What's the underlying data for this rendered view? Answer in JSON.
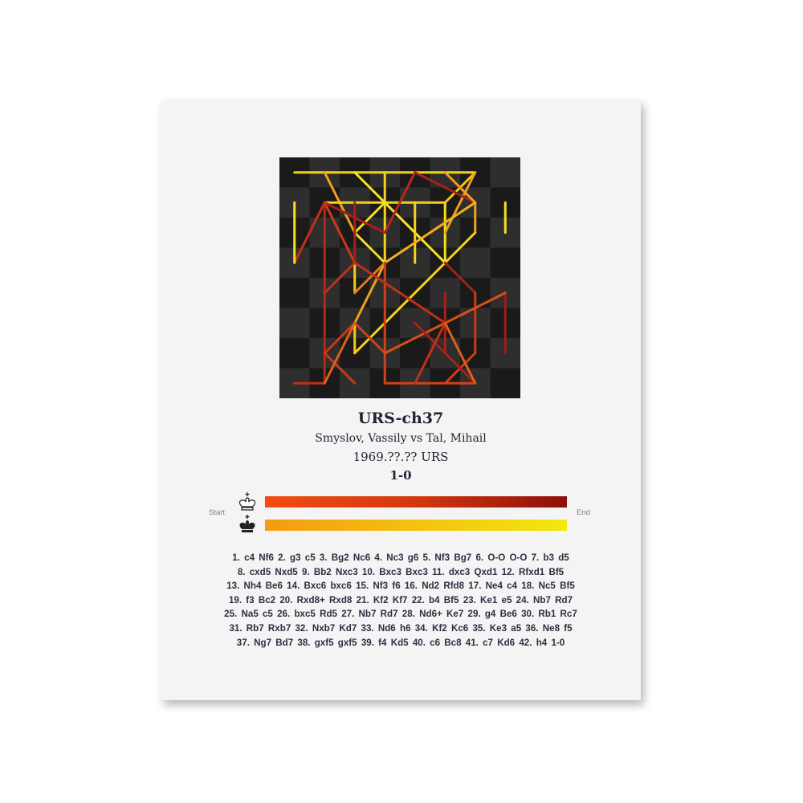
{
  "poster": {
    "event": "URS-ch37",
    "players": "Smyslov,  Vassily vs Tal, Mihail",
    "date_site": "1969.??.?? URS",
    "result": "1-0"
  },
  "legend": {
    "start_label": "Start",
    "end_label": "End",
    "white_icon": "white-king-icon",
    "black_icon": "black-king-icon",
    "white_gradient": [
      "#f24d12",
      "#d2380f",
      "#8e0f0a"
    ],
    "black_gradient": [
      "#f59a12",
      "#f3c210",
      "#f2e80f"
    ]
  },
  "board": {
    "light_square": "#2e2e2e",
    "dark_square": "#1a1a1a",
    "segments": [
      [
        "a8",
        "g8",
        "#f5d21a"
      ],
      [
        "c8",
        "f5",
        "#f7e51b"
      ],
      [
        "d8",
        "d5",
        "#f5d21a"
      ],
      [
        "b8",
        "c6",
        "#f5a01a"
      ],
      [
        "b7",
        "f7",
        "#f5d21a"
      ],
      [
        "e7",
        "e5",
        "#f5d21a"
      ],
      [
        "f7",
        "f5",
        "#f5e01a"
      ],
      [
        "f7",
        "g8",
        "#f5c81a"
      ],
      [
        "g8",
        "f6",
        "#f0a020"
      ],
      [
        "e8",
        "d6",
        "#b8281a"
      ],
      [
        "e8",
        "g7",
        "#a8201a"
      ],
      [
        "f8",
        "g7",
        "#f0a020"
      ],
      [
        "g7",
        "g6",
        "#f0a020"
      ],
      [
        "g6",
        "f5",
        "#f5d21a"
      ],
      [
        "c6",
        "d7",
        "#f5e01a"
      ],
      [
        "c6",
        "d5",
        "#f5e01a"
      ],
      [
        "d5",
        "g7",
        "#f0b020"
      ],
      [
        "b7",
        "d6",
        "#a8201a"
      ],
      [
        "b7",
        "a5",
        "#c03018"
      ],
      [
        "a7",
        "a5",
        "#f5e01a"
      ],
      [
        "b7",
        "b1",
        "#b02818"
      ],
      [
        "b1",
        "a1",
        "#c03018"
      ],
      [
        "b7",
        "c5",
        "#c83a18"
      ],
      [
        "c7",
        "c5",
        "#a82018"
      ],
      [
        "h7",
        "h6",
        "#f5e01a"
      ],
      [
        "c5",
        "c4",
        "#f5c81a"
      ],
      [
        "c4",
        "d5",
        "#e87a18"
      ],
      [
        "c3",
        "d5",
        "#f0a020"
      ],
      [
        "c2",
        "f5",
        "#f5d21a"
      ],
      [
        "c3",
        "c2",
        "#f5c81a"
      ],
      [
        "d5",
        "d2",
        "#d04018"
      ],
      [
        "d2",
        "c3",
        "#d04018"
      ],
      [
        "d2",
        "d1",
        "#d04018"
      ],
      [
        "d1",
        "g1",
        "#d04018"
      ],
      [
        "c5",
        "f3",
        "#c03018"
      ],
      [
        "f5",
        "g4",
        "#a82018"
      ],
      [
        "g4",
        "g2",
        "#c83a18"
      ],
      [
        "g2",
        "f1",
        "#d04018"
      ],
      [
        "h4",
        "h2",
        "#a01a18"
      ],
      [
        "h4",
        "d2",
        "#d85018"
      ],
      [
        "f4",
        "f2",
        "#a82018"
      ],
      [
        "e3",
        "g1",
        "#a82018"
      ],
      [
        "f3",
        "e1",
        "#c03018"
      ],
      [
        "f3",
        "g1",
        "#e06018"
      ],
      [
        "b2",
        "c1",
        "#c83a18"
      ],
      [
        "b2",
        "c3",
        "#c83a18"
      ],
      [
        "b1",
        "c3",
        "#e06018"
      ],
      [
        "b4",
        "c5",
        "#c03018"
      ]
    ]
  },
  "moves_lines": [
    "1. c4  Nf6  2. g3  c5  3. Bg2  Nc6  4. Nc3  g6  5. Nf3  Bg7  6. O-O  O-O  7. b3  d5",
    "8. cxd5  Nxd5  9. Bb2  Nxc3  10. Bxc3  Bxc3  11. dxc3  Qxd1  12. Rfxd1  Bf5",
    "13. Nh4  Be6  14. Bxc6  bxc6  15. Nf3  f6  16. Nd2  Rfd8  17. Ne4  c4  18. Nc5  Bf5",
    "19. f3  Bc2  20. Rxd8+  Rxd8  21. Kf2  Kf7  22. b4  Bf5  23. Ke1  e5  24. Nb7  Rd7",
    "25. Na5  c5  26. bxc5  Rd5  27. Nb7  Rd7  28. Nd6+  Ke7  29. g4  Be6  30. Rb1  Rc7",
    "31. Rb7  Rxb7  32. Nxb7  Kd7  33. Nd6  h6  34. Kf2  Kc6  35. Ke3  a5  36. Ne8  f5",
    "37. Ng7  Bd7  38. gxf5  gxf5  39. f4  Kd5  40. c6  Bc8  41. c7  Kd6  42. h4  1-0"
  ]
}
